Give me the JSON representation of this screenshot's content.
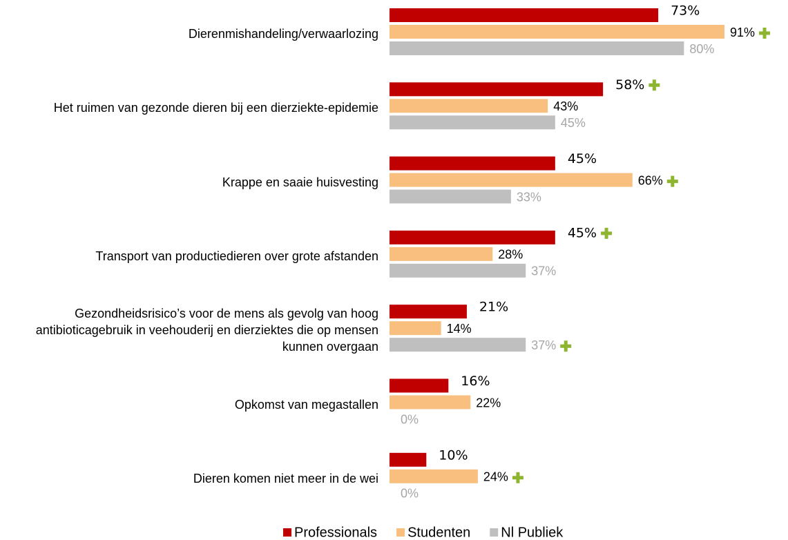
{
  "chart_data": {
    "type": "bar",
    "orientation": "horizontal",
    "categories": [
      "Dierenmishandeling/verwaarlozing",
      "Het ruimen van gezonde dieren bij een dierziekte-epidemie",
      "Krappe en saaie huisvesting",
      "Transport van productiedieren over grote afstanden",
      "Gezondheidsrisico’s voor de mens als gevolg van hoog antibioticagebruik in veehouderij en dierziektes die op mensen kunnen overgaan",
      "Opkomst van megastallen",
      "Dieren komen niet meer in de wei"
    ],
    "xlim": [
      0,
      100
    ],
    "series": [
      {
        "name": "Professionals",
        "color": "#c00000",
        "label_color": "#000000",
        "values": [
          73,
          58,
          45,
          45,
          21,
          16,
          10
        ],
        "value_labels": [
          "73%",
          "58%",
          "45%",
          "45%",
          "21%",
          "16%",
          "10%"
        ]
      },
      {
        "name": "Studenten",
        "color": "#f9bf7f",
        "label_color": "#000000",
        "values": [
          91,
          43,
          66,
          28,
          14,
          22,
          24
        ],
        "value_labels": [
          "91%",
          "43%",
          "66%",
          "28%",
          "14%",
          "22%",
          "24%"
        ]
      },
      {
        "name": "Nl Publiek",
        "color": "#bfbfbf",
        "label_color": "#a6a6a6",
        "values": [
          80,
          45,
          33,
          37,
          37,
          0,
          0
        ],
        "value_labels": [
          "80%",
          "45%",
          "33%",
          "37%",
          "37%",
          "0%",
          "0%"
        ]
      }
    ],
    "legend": "bottom"
  }
}
